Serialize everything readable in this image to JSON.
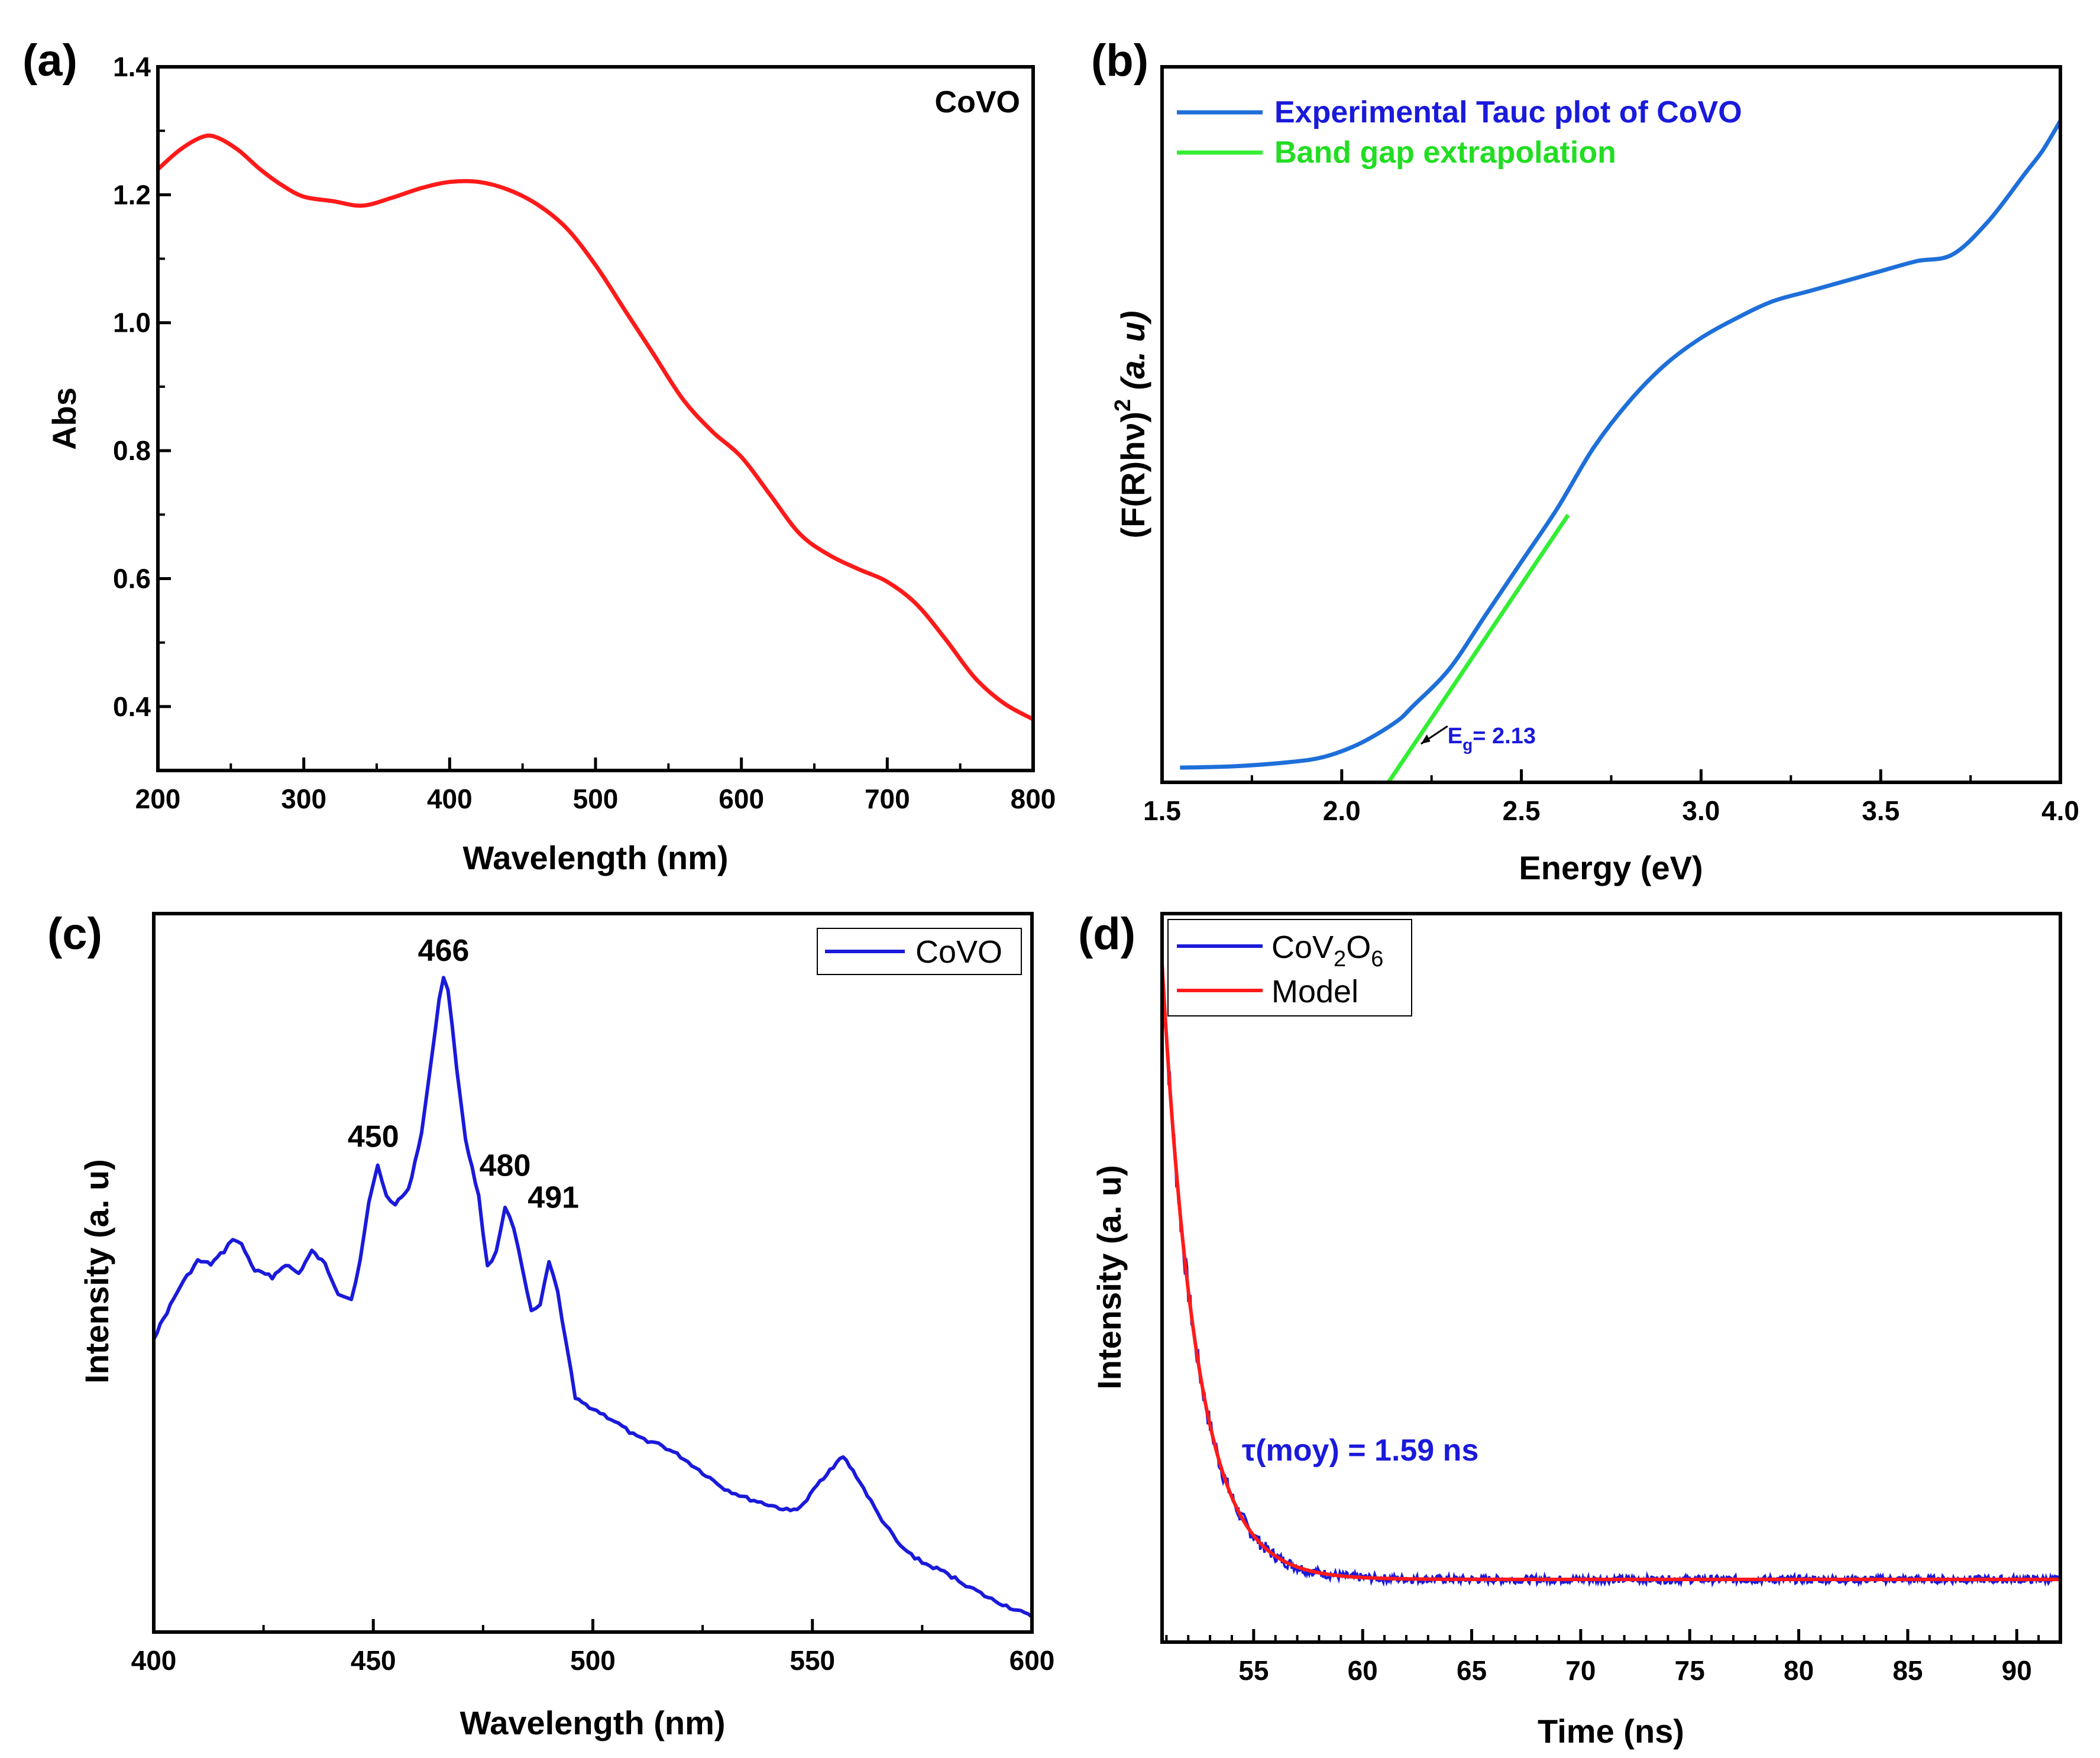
{
  "figure": {
    "panels": [
      "(a)",
      "(b)",
      "(c)",
      "(d)"
    ]
  },
  "chart_data": [
    {
      "id": "a",
      "type": "line",
      "panel_label": "(a)",
      "title": "",
      "xlabel": "Wavelength (nm)",
      "ylabel": "Abs",
      "xlim": [
        200,
        800
      ],
      "ylim": [
        0.3,
        1.4
      ],
      "xticks": [
        200,
        300,
        400,
        500,
        600,
        700,
        800
      ],
      "yticks": [
        0.4,
        0.6,
        0.8,
        1.0,
        1.2,
        1.4
      ],
      "xtick_labels": [
        "200",
        "300",
        "400",
        "500",
        "600",
        "700",
        "800"
      ],
      "ytick_labels": [
        "0.4",
        "0.6",
        "0.8",
        "1.0",
        "1.2",
        "1.4"
      ],
      "annotations": [
        {
          "text": "CoVO",
          "position": "top-right"
        }
      ],
      "color": "#ff1a1a",
      "series": [
        {
          "name": "CoVO",
          "x": [
            200,
            215,
            230,
            240,
            255,
            270,
            285,
            300,
            320,
            340,
            360,
            380,
            400,
            420,
            440,
            460,
            480,
            500,
            520,
            540,
            560,
            580,
            600,
            620,
            640,
            660,
            680,
            700,
            720,
            740,
            760,
            780,
            800
          ],
          "y": [
            1.24,
            1.27,
            1.29,
            1.29,
            1.27,
            1.24,
            1.215,
            1.197,
            1.19,
            1.183,
            1.195,
            1.21,
            1.22,
            1.22,
            1.208,
            1.185,
            1.148,
            1.09,
            1.02,
            0.95,
            0.88,
            0.83,
            0.79,
            0.73,
            0.67,
            0.637,
            0.615,
            0.595,
            0.56,
            0.505,
            0.445,
            0.405,
            0.38
          ]
        }
      ]
    },
    {
      "id": "b",
      "type": "line",
      "panel_label": "(b)",
      "title": "",
      "xlabel": "Energy (eV)",
      "ylabel": "(F(R)hν)² (a. u)",
      "ylabel_parts": {
        "main": "(F(R)hν)",
        "sup": "2",
        "tail": " (a. u)"
      },
      "xlim": [
        1.5,
        4.0
      ],
      "ylim": [
        0,
        1
      ],
      "xticks": [
        1.5,
        2.0,
        2.5,
        3.0,
        3.5,
        4.0
      ],
      "xtick_labels": [
        "1.5",
        "2.0",
        "2.5",
        "3.0",
        "3.5",
        "4.0"
      ],
      "yticks": [],
      "legend": [
        {
          "label": "Experimental Tauc plot of CoVO",
          "color": "#1e6fd9",
          "text_color": "#1a1adb"
        },
        {
          "label": "Band gap extrapolation",
          "color": "#33ee33",
          "text_color": "#22dd22"
        }
      ],
      "annotations": [
        {
          "text_main": "E",
          "text_sub": "g",
          "text_tail": "= 2.13",
          "x": 2.13,
          "color": "#1a1adb"
        }
      ],
      "series": [
        {
          "name": "Experimental Tauc plot of CoVO",
          "color": "#1e6fd9",
          "x": [
            1.55,
            1.7,
            1.85,
            1.95,
            2.05,
            2.15,
            2.2,
            2.3,
            2.4,
            2.5,
            2.6,
            2.7,
            2.8,
            2.9,
            3.0,
            3.1,
            3.2,
            3.3,
            3.4,
            3.5,
            3.6,
            3.7,
            3.8,
            3.9,
            3.95,
            4.0
          ],
          "y": [
            0.022,
            0.024,
            0.03,
            0.038,
            0.058,
            0.09,
            0.115,
            0.17,
            0.25,
            0.33,
            0.41,
            0.5,
            0.57,
            0.625,
            0.665,
            0.695,
            0.72,
            0.735,
            0.75,
            0.765,
            0.78,
            0.79,
            0.84,
            0.91,
            0.945,
            0.99
          ]
        },
        {
          "name": "Band gap extrapolation",
          "color": "#33ee33",
          "x": [
            2.13,
            2.63
          ],
          "y": [
            0.0,
            0.4
          ]
        }
      ]
    },
    {
      "id": "c",
      "type": "line",
      "panel_label": "(c)",
      "title": "",
      "xlabel": "Wavelength (nm)",
      "ylabel": "Intensity (a. u)",
      "xlim": [
        400,
        600
      ],
      "ylim": [
        0,
        1.05
      ],
      "xticks": [
        400,
        450,
        500,
        550,
        600
      ],
      "xtick_labels": [
        "400",
        "450",
        "500",
        "550",
        "600"
      ],
      "yticks": [],
      "legend": [
        {
          "label": "CoVO",
          "color": "#1a1adb"
        }
      ],
      "peak_labels": [
        {
          "text": "466",
          "x": 466,
          "y": 1.0
        },
        {
          "text": "450",
          "x": 450,
          "y": 0.71
        },
        {
          "text": "480",
          "x": 480,
          "y": 0.665
        },
        {
          "text": "491",
          "x": 491,
          "y": 0.615
        }
      ],
      "series": [
        {
          "name": "CoVO",
          "color": "#1a1adb",
          "x": [
            400,
            403,
            406,
            410,
            413,
            416,
            418,
            420,
            423,
            427,
            430,
            433,
            436,
            439,
            442,
            445,
            447,
            449,
            451,
            453,
            455,
            458,
            461,
            463,
            465,
            466,
            467,
            469,
            471,
            474,
            476,
            478,
            480,
            482,
            484,
            486,
            488,
            490,
            492,
            494,
            496,
            500,
            505,
            510,
            515,
            520,
            525,
            530,
            535,
            540,
            545,
            548,
            551,
            554,
            557,
            560,
            565,
            570,
            575,
            580,
            585,
            590,
            595,
            600
          ],
          "y": [
            0.44,
            0.48,
            0.52,
            0.56,
            0.555,
            0.575,
            0.595,
            0.585,
            0.545,
            0.535,
            0.555,
            0.54,
            0.575,
            0.555,
            0.51,
            0.5,
            0.56,
            0.65,
            0.71,
            0.66,
            0.65,
            0.67,
            0.76,
            0.86,
            0.97,
            1.0,
            0.985,
            0.86,
            0.75,
            0.66,
            0.55,
            0.575,
            0.645,
            0.61,
            0.545,
            0.48,
            0.49,
            0.56,
            0.51,
            0.43,
            0.345,
            0.33,
            0.31,
            0.285,
            0.275,
            0.255,
            0.23,
            0.205,
            0.19,
            0.18,
            0.17,
            0.18,
            0.21,
            0.235,
            0.255,
            0.225,
            0.165,
            0.115,
            0.09,
            0.075,
            0.055,
            0.035,
            0.02,
            0.005
          ]
        }
      ]
    },
    {
      "id": "d",
      "type": "line",
      "panel_label": "(d)",
      "title": "",
      "xlabel": "Time (ns)",
      "ylabel": "Intensity (a. u)",
      "xlim": [
        50.8,
        92
      ],
      "ylim": [
        0,
        1.05
      ],
      "xticks": [
        55,
        60,
        65,
        70,
        75,
        80,
        85,
        90
      ],
      "xtick_labels": [
        "55",
        "60",
        "65",
        "70",
        "75",
        "80",
        "85",
        "90"
      ],
      "yticks": [],
      "legend": [
        {
          "label_main": "CoV",
          "sub1": "2",
          "mid": "O",
          "sub2": "6",
          "color": "#1a1adb"
        },
        {
          "label": "Model",
          "color": "#ff1a1a"
        }
      ],
      "annotations": [
        {
          "text": "τ(moy) = 1.59 ns",
          "color": "#1a1adb"
        }
      ],
      "decay": {
        "t0": 50.8,
        "tau": 1.59,
        "baseline": 0.075,
        "amplitude": 0.93
      },
      "series": [
        {
          "name": "CoV2O6",
          "color": "#1a1adb",
          "kind": "noisy_decay"
        },
        {
          "name": "Model",
          "color": "#ff1a1a",
          "kind": "exp_decay"
        }
      ]
    }
  ]
}
